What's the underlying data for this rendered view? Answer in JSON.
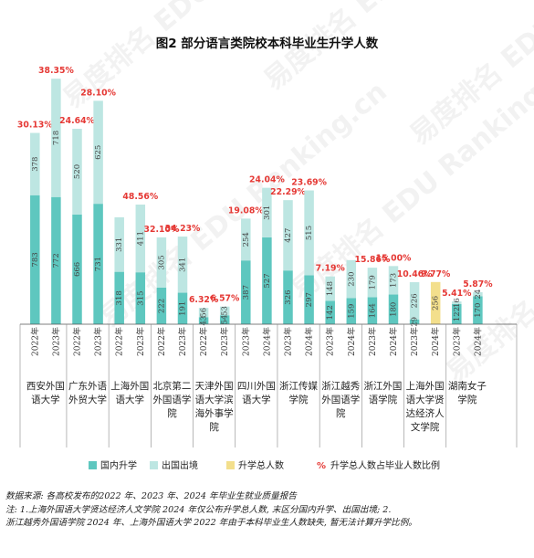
{
  "watermark": "易度排名 EDU Ranking.cn",
  "chart_data": {
    "type": "bar",
    "title": "图2  部分语言类院校本科毕业生升学人数",
    "colors": {
      "domestic": "#5ec7bf",
      "abroad": "#bde6e2",
      "total": "#f3df8c",
      "pct": "#e53935",
      "axis": "#555555"
    },
    "groups": [
      {
        "name": "西安外国语大学",
        "bars": [
          {
            "year": "2022年",
            "domestic": 783,
            "abroad": 378,
            "pct": "30.13%"
          },
          {
            "year": "2023年",
            "domestic": 772,
            "abroad": 718,
            "pct": "38.35%"
          }
        ]
      },
      {
        "name": "广东外语外贸大学",
        "bars": [
          {
            "year": "2022年",
            "domestic": 666,
            "abroad": 520,
            "pct": "24.64%"
          },
          {
            "year": "2023年",
            "domestic": 731,
            "abroad": 625,
            "pct": "28.10%"
          }
        ]
      },
      {
        "name": "上海外国语大学",
        "bars": [
          {
            "year": "2022年",
            "domestic": 318,
            "abroad": 331,
            "pct": ""
          },
          {
            "year": "2023年",
            "domestic": 315,
            "abroad": 411,
            "pct": "48.56%"
          }
        ]
      },
      {
        "name": "北京第二外国语学院",
        "bars": [
          {
            "year": "2022年",
            "domestic": 222,
            "abroad": 305,
            "pct": "32.10%"
          },
          {
            "year": "2023年",
            "domestic": 191,
            "abroad": 341,
            "pct": "34.23%"
          }
        ]
      },
      {
        "name": "天津外国语大学滨海外事学院",
        "bars": [
          {
            "year": "2022年",
            "domestic": 43,
            "abroad": 56,
            "pct": "6.32%"
          },
          {
            "year": "2023年",
            "domestic": 54,
            "abroad": 53,
            "pct": "6.57%"
          }
        ]
      },
      {
        "name": "四川外国语大学",
        "bars": [
          {
            "year": "2023年",
            "domestic": 387,
            "abroad": 254,
            "pct": "19.08%"
          },
          {
            "year": "2024年",
            "domestic": 527,
            "abroad": 301,
            "pct": "24.04%"
          }
        ]
      },
      {
        "name": "浙江传媒学院",
        "bars": [
          {
            "year": "2023年",
            "domestic": 326,
            "abroad": 427,
            "pct": "22.29%"
          },
          {
            "year": "2024年",
            "domestic": 297,
            "abroad": 515,
            "pct": "23.69%"
          }
        ]
      },
      {
        "name": "浙江越秀外国语学院",
        "bars": [
          {
            "year": "2023年",
            "domestic": 142,
            "abroad": 148,
            "pct": "7.19%"
          },
          {
            "year": "2024年",
            "domestic": 159,
            "abroad": 230,
            "pct": ""
          }
        ]
      },
      {
        "name": "浙江外国语学院",
        "bars": [
          {
            "year": "2023年",
            "domestic": 164,
            "abroad": 179,
            "pct": "15.86%"
          },
          {
            "year": "2024年",
            "domestic": 180,
            "abroad": 173,
            "pct": "15.00%"
          }
        ]
      },
      {
        "name": "上海外国语大学贤达经济人文学院",
        "bars": [
          {
            "year": "2023年",
            "domestic": 29,
            "abroad": 226,
            "pct": "10.46%"
          },
          {
            "year": "2024年",
            "total": 256,
            "pct": "9.77%"
          }
        ]
      },
      {
        "name": "湖南女子学院",
        "bars": [
          {
            "year": "2023年",
            "domestic": 122,
            "abroad": 16,
            "pct": "5.41%"
          },
          {
            "year": "2024年",
            "domestic": 170,
            "abroad": 24,
            "pct": "5.87%"
          }
        ]
      }
    ],
    "legend": {
      "domestic": "国内升学",
      "abroad": "出国出境",
      "total": "升学总人数",
      "pct_symbol": "%",
      "pct": "升学总人数占毕业人数比例"
    },
    "legend_position": "bottom",
    "ylim": [
      0,
      1560
    ]
  },
  "footer": {
    "source": "数据来源:   各高校发布的2022 年、2023 年、2024 年毕业生就业质量报告",
    "note1": "注: 1.上海外国语大学贤达经济人文学院 2024 年仅公布升学总人数,  末区分国内升学、出国出境; 2.",
    "note2": "浙江越秀外国语学院 2024 年、上海外国语大学 2022 年由于本科毕业生人数缺失, 暂无法计算升学比例。"
  }
}
